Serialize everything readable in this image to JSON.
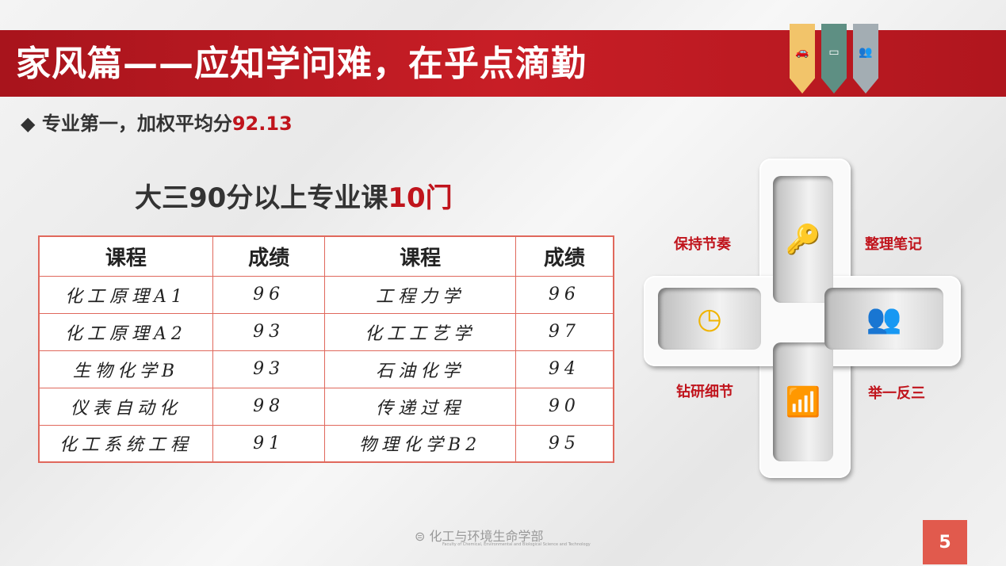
{
  "header": {
    "title": "家风篇——应知学问难，在乎点滴勤",
    "ribbons": [
      {
        "icon": "car-icon",
        "color": "#f2c46a"
      },
      {
        "icon": "battery-icon",
        "color": "#5e8f83"
      },
      {
        "icon": "users-icon",
        "color": "#a3adb3"
      }
    ]
  },
  "subtitle": {
    "bullet": "◆",
    "text": "专业第一，加权平均分",
    "value": "92.13"
  },
  "heading": {
    "text": "大三90分以上专业课",
    "value": "10门"
  },
  "table": {
    "headers": [
      "课程",
      "成绩",
      "课程",
      "成绩"
    ],
    "rows": [
      [
        "化工原理A1",
        "96",
        "工程力学",
        "96"
      ],
      [
        "化工原理A2",
        "93",
        "化工工艺学",
        "97"
      ],
      [
        "生物化学B",
        "93",
        "石油化学",
        "94"
      ],
      [
        "仪表自动化",
        "98",
        "传递过程",
        "90"
      ],
      [
        "化工系统工程",
        "91",
        "物理化学B2",
        "95"
      ]
    ]
  },
  "diagram": {
    "labels": [
      "保持节奏",
      "整理笔记",
      "钻研细节",
      "举一反三"
    ],
    "icons": [
      "key-hand-icon",
      "clock-icon",
      "team-podium-icon",
      "climbing-stairs-icon"
    ],
    "accent": "#f0b400",
    "label_color": "#c0141c"
  },
  "footer": {
    "org": "化工与环境生命学部",
    "org_en": "Faculty of Chemical, Environmental and Biological Science and Technology",
    "page": "5"
  }
}
